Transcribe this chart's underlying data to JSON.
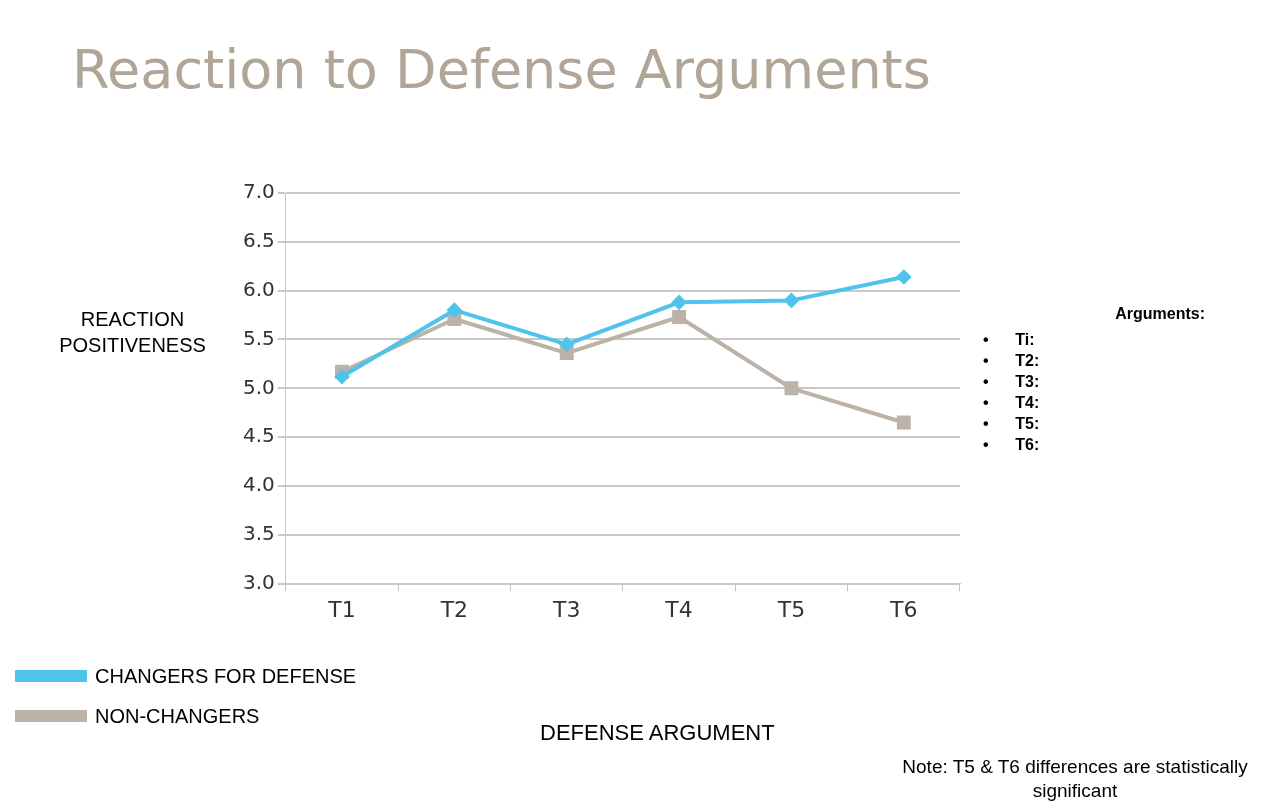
{
  "chart_data": {
    "type": "line",
    "title": "Reaction to Defense Arguments",
    "xlabel": "DEFENSE ARGUMENT",
    "ylabel": "REACTION\nPOSITIVENESS",
    "categories": [
      "T1",
      "T2",
      "T3",
      "T4",
      "T5",
      "T6"
    ],
    "series": [
      {
        "name": "CHANGERS FOR DEFENSE",
        "color": "#4fc3ec",
        "marker": "diamond",
        "values": [
          5.12,
          5.8,
          5.45,
          5.88,
          5.9,
          6.14
        ]
      },
      {
        "name": "NON-CHANGERS",
        "color": "#bcb3a8",
        "marker": "square",
        "values": [
          5.17,
          5.71,
          5.36,
          5.73,
          5.0,
          4.65
        ]
      }
    ],
    "ylim": [
      3,
      7
    ],
    "yticks": [
      {
        "value": 3,
        "label": "3.0"
      },
      {
        "value": 3.5,
        "label": "3.5"
      },
      {
        "value": 4,
        "label": "4.0"
      },
      {
        "value": 4.5,
        "label": "4.5"
      },
      {
        "value": 5,
        "label": "5.0"
      },
      {
        "value": 5.5,
        "label": "5.5"
      },
      {
        "value": 6,
        "label": "6.0"
      },
      {
        "value": 6.5,
        "label": "6.5"
      },
      {
        "value": 7,
        "label": "7.0"
      }
    ],
    "grid": "y",
    "legend": "bottom left",
    "annotations": [
      "Arguments:",
      "•      Ti:",
      "•      T2:",
      "•      T3:",
      "•      T4:",
      "•      T5:",
      "•      T6:",
      "Note: T5 & T6 differences are statistically significant"
    ]
  }
}
